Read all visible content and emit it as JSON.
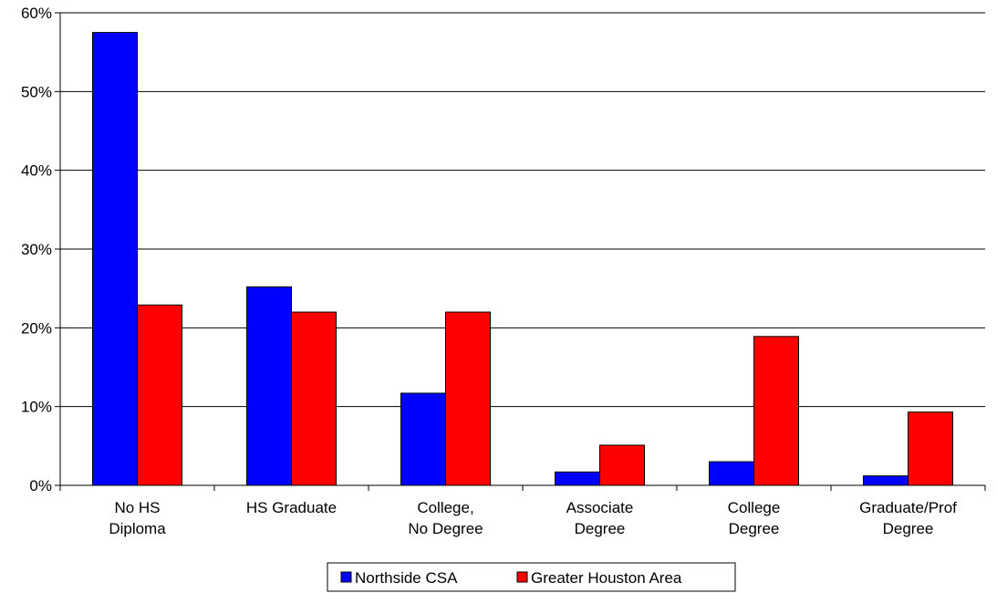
{
  "chart_data": {
    "type": "bar",
    "categories": [
      [
        "No HS",
        "Diploma"
      ],
      [
        "HS Graduate"
      ],
      [
        "College,",
        "No Degree"
      ],
      [
        "Associate",
        "Degree"
      ],
      [
        "College",
        "Degree"
      ],
      [
        "Graduate/Prof",
        "Degree"
      ]
    ],
    "series": [
      {
        "name": "Northside CSA",
        "color": "#0000ff",
        "values": [
          57.5,
          25.2,
          11.7,
          1.7,
          3.0,
          1.2
        ]
      },
      {
        "name": "Greater Houston Area",
        "color": "#ff0000",
        "values": [
          22.9,
          22.0,
          22.0,
          5.1,
          18.9,
          9.3
        ]
      }
    ],
    "ylim": [
      0,
      60
    ],
    "yticks": [
      "0%",
      "10%",
      "20%",
      "30%",
      "40%",
      "50%",
      "60%"
    ],
    "ytick_values": [
      0,
      10,
      20,
      30,
      40,
      50,
      60
    ],
    "grid": true,
    "legend_position": "bottom-center"
  }
}
